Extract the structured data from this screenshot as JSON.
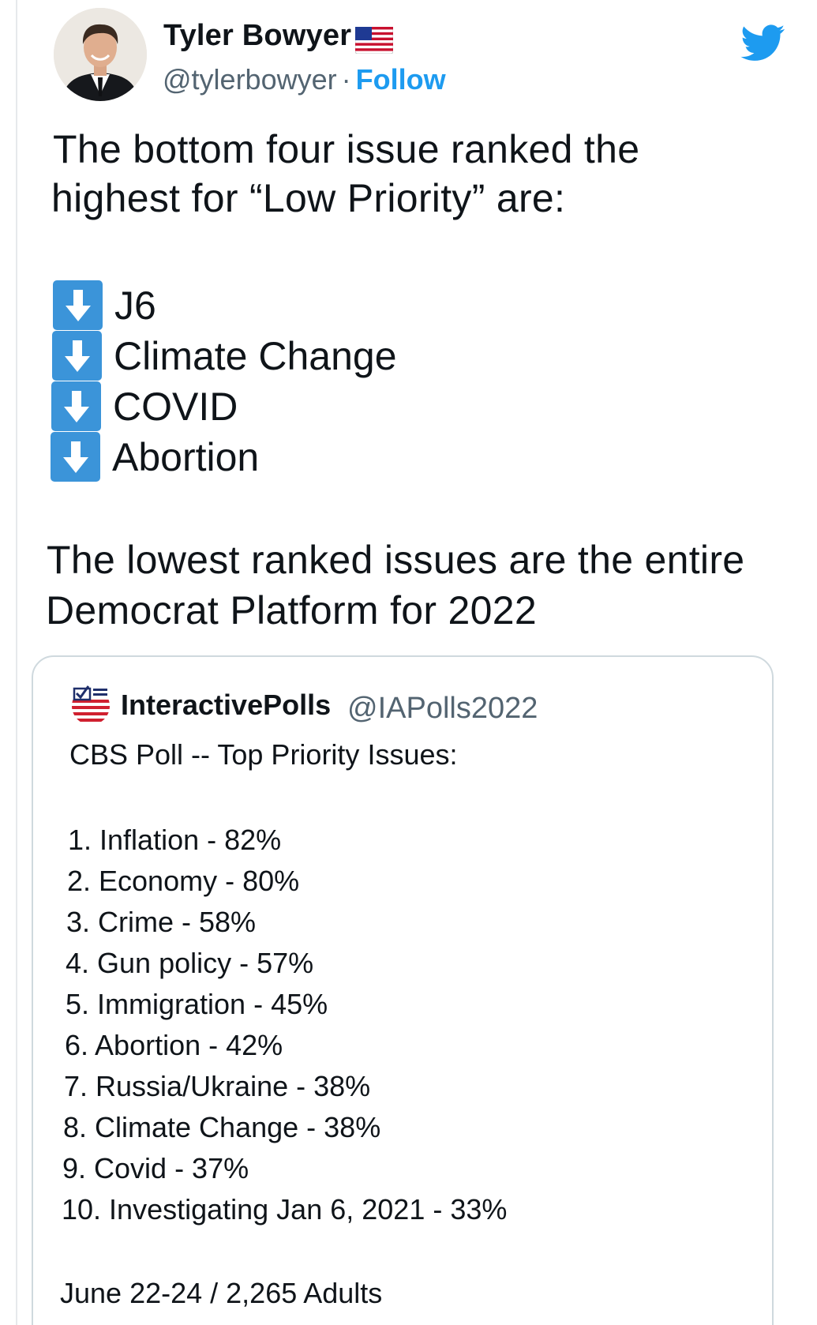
{
  "author": {
    "name": "Tyler Bowyer",
    "handle": "@tylerbowyer",
    "separator": "·",
    "follow_label": "Follow"
  },
  "tweet": {
    "line1": "The bottom four issue ranked the",
    "line2": "highest for “Low Priority” are:",
    "bullets": [
      "J6",
      "Climate Change",
      "COVID",
      "Abortion"
    ],
    "line3": "The lowest ranked issues are the entire",
    "line4": "Democrat Platform for 2022"
  },
  "quote": {
    "name": "InteractivePolls",
    "handle": "@IAPolls2022",
    "heading": "CBS Poll -- Top Priority Issues:",
    "items": [
      "1. Inflation - 82%",
      "2. Economy - 80%",
      "3. Crime - 58%",
      "4. Gun policy - 57%",
      "5. Immigration - 45%",
      "6. Abortion - 42%",
      "7. Russia/Ukraine - 38%",
      "8. Climate Change - 38%",
      "9. Covid - 37%",
      "10. Investigating Jan 6, 2021 - 33%"
    ],
    "footer": "June 22-24 / 2,265 Adults"
  },
  "icons": {
    "flag": "us-flag-icon",
    "bird": "twitter-bird-icon",
    "arrow": "down-arrow-icon"
  },
  "colors": {
    "link": "#1d9bf0",
    "bird": "#1d9bf0",
    "arrow_box": "#3b94d9",
    "secondary_text": "#536471"
  }
}
